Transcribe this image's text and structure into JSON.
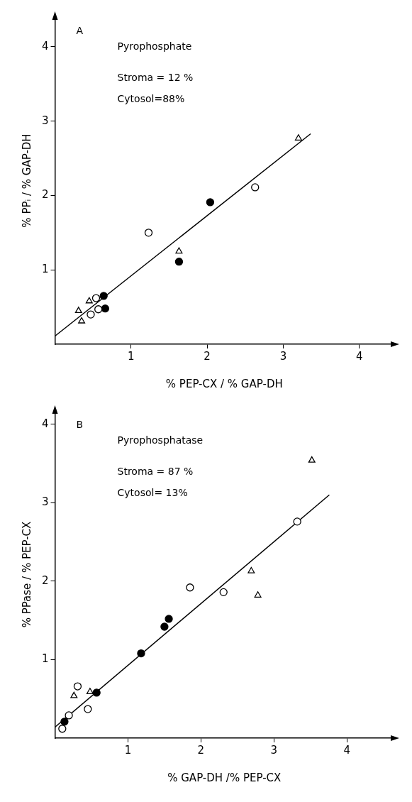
{
  "chart_data": [
    {
      "type": "scatter",
      "xlabel": "% PEP-CX / % GAP-DH",
      "ylabel": "% PPᵢ / % GAP-DH",
      "annotations": [
        "A",
        "Pyrophosphate",
        "Stroma = 12 %",
        "Cytosol=88%"
      ],
      "xlim": [
        0,
        4.45
      ],
      "ylim": [
        0,
        4.4
      ],
      "xticks": [
        1,
        2,
        3,
        4
      ],
      "yticks": [
        1,
        2,
        3,
        4
      ],
      "grid": false,
      "legend": false,
      "series": [
        {
          "type": "scatter",
          "marker": "circle",
          "color": "#ffffff",
          "x": [
            2.63,
            1.23,
            0.54,
            0.57,
            0.47
          ],
          "values": [
            2.11,
            1.5,
            0.62,
            0.47,
            0.4
          ]
        },
        {
          "type": "scatter",
          "marker": "circle",
          "color": "#000000",
          "x": [
            2.04,
            1.63,
            0.64,
            0.66
          ],
          "values": [
            1.91,
            1.11,
            0.65,
            0.48
          ]
        },
        {
          "type": "scatter",
          "marker": "triangle",
          "color": "#ffffff",
          "x": [
            3.2,
            1.63,
            0.45,
            0.31,
            0.35
          ],
          "values": [
            2.77,
            1.25,
            0.58,
            0.45,
            0.31
          ]
        },
        {
          "type": "line",
          "marker": "none",
          "color": "#000000",
          "x": [
            0,
            3.36
          ],
          "values": [
            0.11,
            2.83
          ]
        }
      ]
    },
    {
      "type": "scatter",
      "xlabel": "% GAP-DH /% PEP-CX",
      "ylabel": "% PPase / % PEP-CX",
      "annotations": [
        "B",
        "Pyrophosphatase",
        "Stroma = 87 %",
        "Cytosol= 13%"
      ],
      "xlim": [
        0,
        4.64
      ],
      "ylim": [
        0,
        4.17
      ],
      "xticks": [
        1,
        2,
        3,
        4
      ],
      "yticks": [
        1,
        2,
        3,
        4
      ],
      "grid": false,
      "legend": false,
      "series": [
        {
          "type": "scatter",
          "marker": "circle",
          "color": "#ffffff",
          "x": [
            3.32,
            1.85,
            2.31,
            0.31,
            0.45,
            0.19,
            0.1
          ],
          "values": [
            2.76,
            1.92,
            1.86,
            0.66,
            0.37,
            0.29,
            0.12
          ]
        },
        {
          "type": "scatter",
          "marker": "circle",
          "color": "#000000",
          "x": [
            1.56,
            1.5,
            1.18,
            0.57,
            0.13
          ],
          "values": [
            1.52,
            1.42,
            1.08,
            0.58,
            0.21
          ]
        },
        {
          "type": "scatter",
          "marker": "triangle",
          "color": "#ffffff",
          "x": [
            3.52,
            2.69,
            2.78,
            0.48,
            0.26
          ],
          "values": [
            3.54,
            2.13,
            1.82,
            0.59,
            0.54
          ]
        },
        {
          "type": "line",
          "marker": "none",
          "color": "#000000",
          "x": [
            0,
            3.76
          ],
          "values": [
            0.14,
            3.1
          ]
        }
      ]
    }
  ]
}
